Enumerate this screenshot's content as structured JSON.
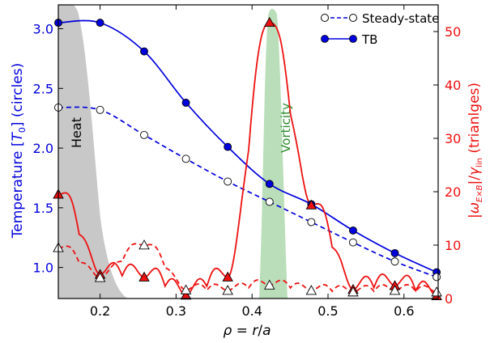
{
  "chart_data": {
    "type": "line",
    "xlabel": "ρ = r/a",
    "ylabel_left": "Temperature [T₀] (circles)",
    "ylabel_right": "|ω_{E×B}|/γ_lin (trianlges)",
    "ylabel_left_parts": {
      "pre": "Temperature [",
      "sym": "T",
      "sub": "0",
      "post": "] (circles)"
    },
    "ylabel_right_parts": {
      "bar1": "|",
      "omega": "ω",
      "omega_sub": "E×B",
      "bar2": "|/",
      "gamma": "γ",
      "gamma_sub": "lin",
      "post": " (trianlges)"
    },
    "xlabel_parts": {
      "rho": "ρ",
      "eq": " = ",
      "r": "r",
      "slash": "/",
      "a": "a"
    },
    "xlim": [
      0.145,
      0.645
    ],
    "ylim_left": [
      0.74,
      3.2
    ],
    "ylim_right": [
      0,
      55
    ],
    "xticks": [
      0.2,
      0.3,
      0.4,
      0.5,
      0.6
    ],
    "xtick_labels": [
      "0.2",
      "0.3",
      "0.4",
      "0.5",
      "0.6"
    ],
    "yticks_left": [
      1.0,
      1.5,
      2.0,
      2.5,
      3.0
    ],
    "ytick_labels_left": [
      "1.0",
      "1.5",
      "2.0",
      "2.5",
      "3.0"
    ],
    "yticks_right": [
      0,
      10,
      20,
      30,
      40,
      50
    ],
    "ytick_labels_right": [
      "0",
      "10",
      "20",
      "30",
      "40",
      "50"
    ],
    "colors": {
      "left_axis": "#0000dd",
      "right_axis": "#ee1111",
      "heat": "#c8c8c8",
      "vorticity": "#b9deb9",
      "vorticity_text": "#2a8a2a",
      "tb_line": "#0000dd",
      "steady_line": "#0000dd",
      "triangle_line": "#ee1111"
    },
    "annotations": [
      {
        "text": "Heat",
        "rotation": -90
      },
      {
        "text": "Vorticity",
        "rotation": -90
      }
    ],
    "legend": {
      "placement": "top-right",
      "entries": [
        {
          "label": "Steady-state",
          "style": "dashed-open-circle"
        },
        {
          "label": "TB",
          "style": "solid-filled-circle"
        }
      ]
    },
    "series": [
      {
        "name": "TB",
        "axis": "left",
        "marker": "filled-circle",
        "line": "solid",
        "x": [
          0.145,
          0.2,
          0.258,
          0.313,
          0.368,
          0.423,
          0.478,
          0.533,
          0.588,
          0.643
        ],
        "y": [
          3.05,
          3.05,
          2.81,
          2.38,
          2.01,
          1.7,
          1.53,
          1.31,
          1.12,
          0.96
        ]
      },
      {
        "name": "Steady-state",
        "axis": "left",
        "marker": "open-circle",
        "line": "dashed",
        "x": [
          0.145,
          0.2,
          0.258,
          0.313,
          0.368,
          0.423,
          0.478,
          0.533,
          0.588,
          0.643
        ],
        "y": [
          2.34,
          2.32,
          2.11,
          1.91,
          1.72,
          1.55,
          1.38,
          1.21,
          1.05,
          0.92
        ]
      }
    ],
    "triangle_series": [
      {
        "axis": "right",
        "marker": "filled-triangle",
        "line": "solid",
        "x": [
          0.145,
          0.2,
          0.258,
          0.313,
          0.368,
          0.423,
          0.478,
          0.533,
          0.588,
          0.643
        ],
        "y": [
          19.5,
          4.5,
          4.0,
          0.6,
          4.0,
          51.7,
          17.5,
          1.7,
          2.4,
          0.5
        ]
      },
      {
        "axis": "right",
        "marker": "open-triangle",
        "line": "dashed",
        "x": [
          0.145,
          0.2,
          0.258,
          0.313,
          0.368,
          0.423,
          0.478,
          0.533,
          0.588,
          0.643
        ],
        "y": [
          9.5,
          3.9,
          10.0,
          1.6,
          1.5,
          2.5,
          1.5,
          1.2,
          1.5,
          1.2
        ]
      }
    ]
  }
}
